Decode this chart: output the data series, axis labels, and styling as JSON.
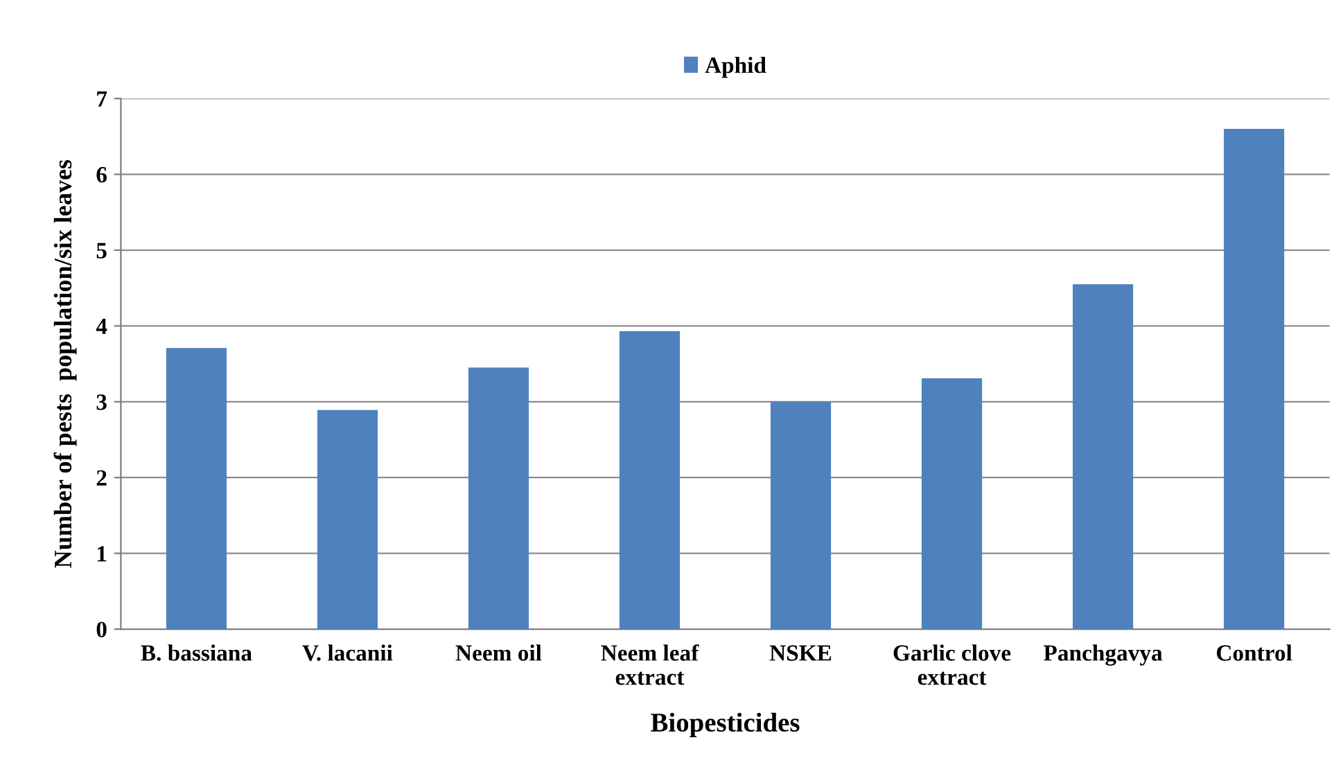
{
  "chart_data": {
    "type": "bar",
    "categories": [
      "B. bassiana",
      "V. lacanii",
      "Neem oil",
      "Neem leaf\nextract",
      "NSKE",
      "Garlic clove\nextract",
      "Panchgavya",
      "Control"
    ],
    "series": [
      {
        "name": "Aphid",
        "color": "#4f81bd",
        "values": [
          3.71,
          2.89,
          3.45,
          3.93,
          3.0,
          3.31,
          4.55,
          6.6
        ]
      }
    ],
    "xlabel": "Biopesticides",
    "ylabel": "Number of pests  population/six leaves",
    "ylim": [
      0,
      7
    ],
    "yticks": [
      0,
      1,
      2,
      3,
      4,
      5,
      6,
      7
    ],
    "grid": "y",
    "legend": "top"
  }
}
